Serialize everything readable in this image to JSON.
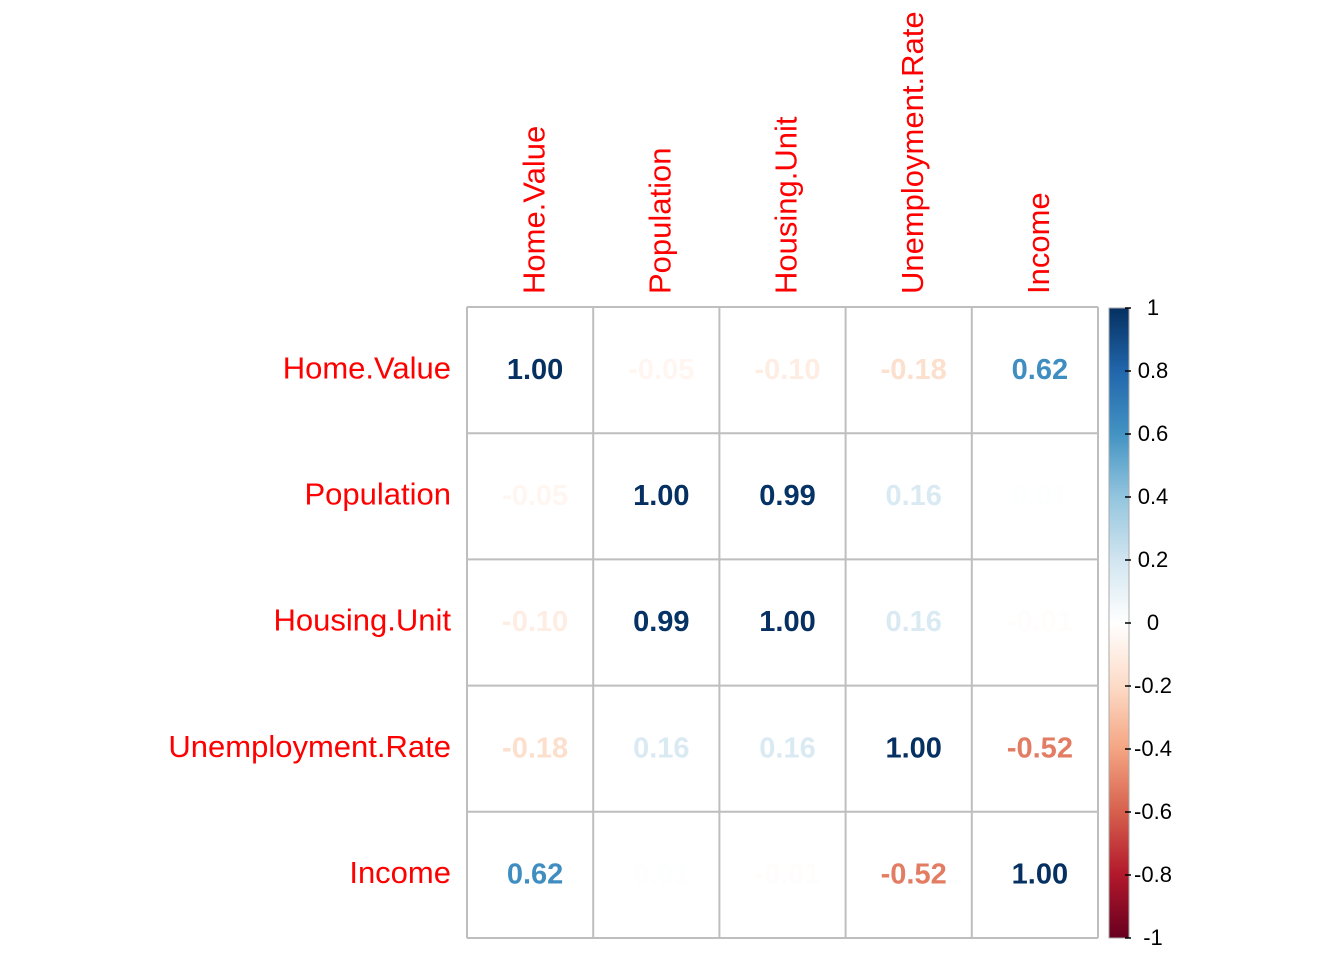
{
  "chart_data": {
    "type": "heatmap",
    "variables": [
      "Home.Value",
      "Population",
      "Housing.Unit",
      "Unemployment.Rate",
      "Income"
    ],
    "matrix": [
      [
        1.0,
        -0.05,
        -0.1,
        -0.18,
        0.62
      ],
      [
        -0.05,
        1.0,
        0.99,
        0.16,
        0.01
      ],
      [
        -0.1,
        0.99,
        1.0,
        0.16,
        -0.01
      ],
      [
        -0.18,
        0.16,
        0.16,
        1.0,
        -0.52
      ],
      [
        0.62,
        0.01,
        -0.01,
        -0.52,
        1.0
      ]
    ],
    "matrix_labels": [
      [
        "1.00",
        "-0.05",
        "-0.10",
        "-0.18",
        "0.62"
      ],
      [
        "-0.05",
        "1.00",
        "0.99",
        "0.16",
        "0.01"
      ],
      [
        "-0.10",
        "0.99",
        "1.00",
        "0.16",
        "-0.01"
      ],
      [
        "-0.18",
        "0.16",
        "0.16",
        "1.00",
        "-0.52"
      ],
      [
        "0.62",
        "0.01",
        "-0.01",
        "-0.52",
        "1.00"
      ]
    ],
    "colorbar": {
      "range": [
        -1,
        1
      ],
      "ticks": [
        "1",
        "0.8",
        "0.6",
        "0.4",
        "0.2",
        "0",
        "-0.2",
        "-0.4",
        "-0.6",
        "-0.8",
        "-1"
      ],
      "palette": [
        "#67001F",
        "#B2182B",
        "#D6604D",
        "#F4A582",
        "#FDDBC7",
        "#FFFFFF",
        "#D1E5F0",
        "#92C5DE",
        "#4393C3",
        "#2166AC",
        "#053061"
      ]
    },
    "label_color": "#FF0000",
    "grid_color": "#BEBEBE",
    "grid": true
  }
}
